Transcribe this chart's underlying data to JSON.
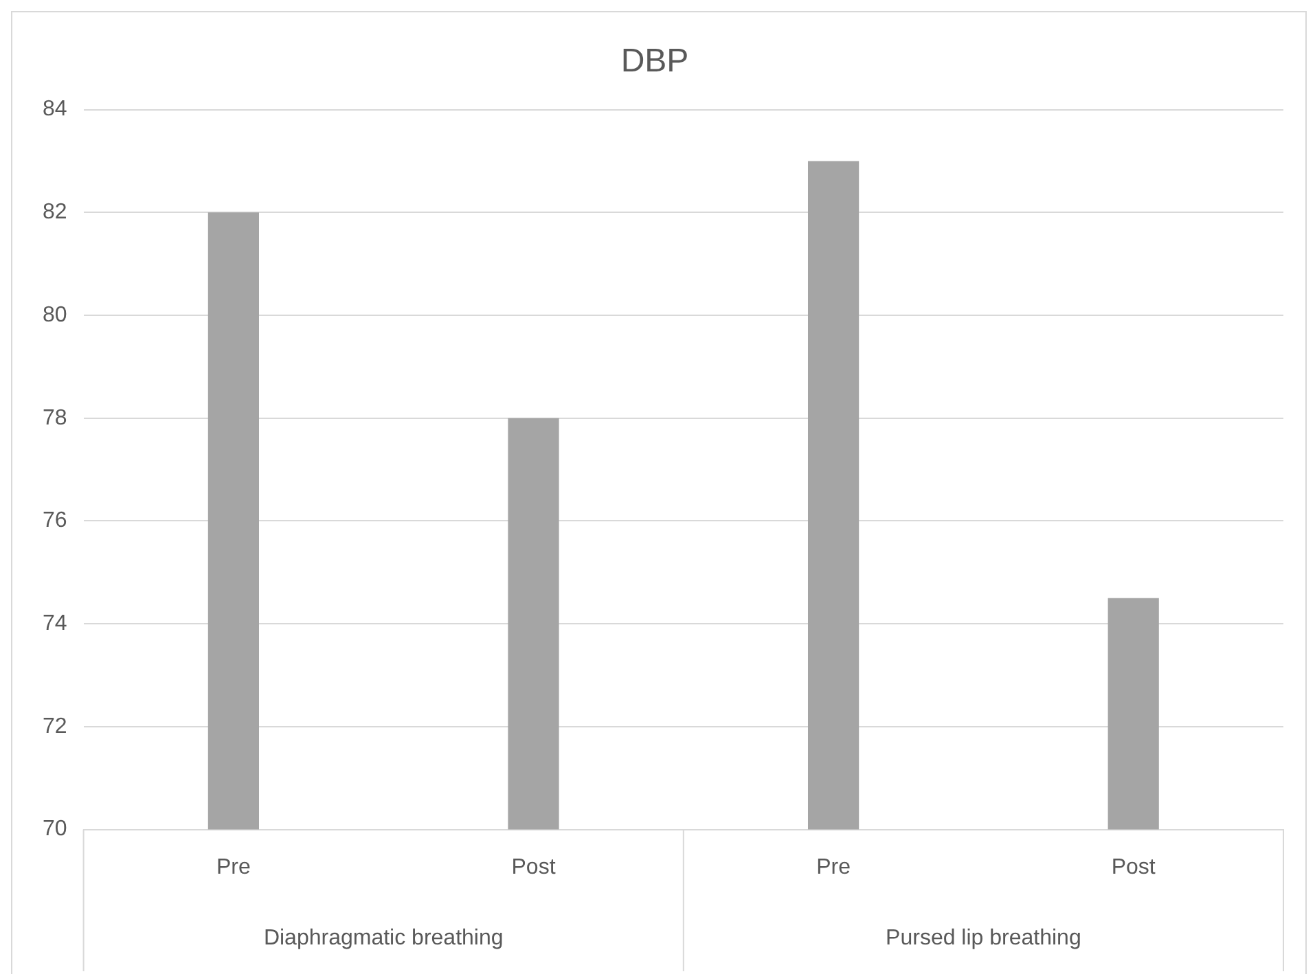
{
  "chart_data": {
    "type": "bar",
    "title": "DBP",
    "categories": [
      "Pre",
      "Post",
      "Pre",
      "Post"
    ],
    "values": [
      82,
      78,
      83,
      74.5
    ],
    "color": "#a5a5a5",
    "ylim": [
      70,
      84
    ],
    "yticks": [
      70,
      72,
      74,
      76,
      78,
      80,
      82,
      84
    ],
    "grid": "y",
    "annotations": [
      "Diaphragmatic breathing",
      "Pursed lip breathing"
    ]
  }
}
